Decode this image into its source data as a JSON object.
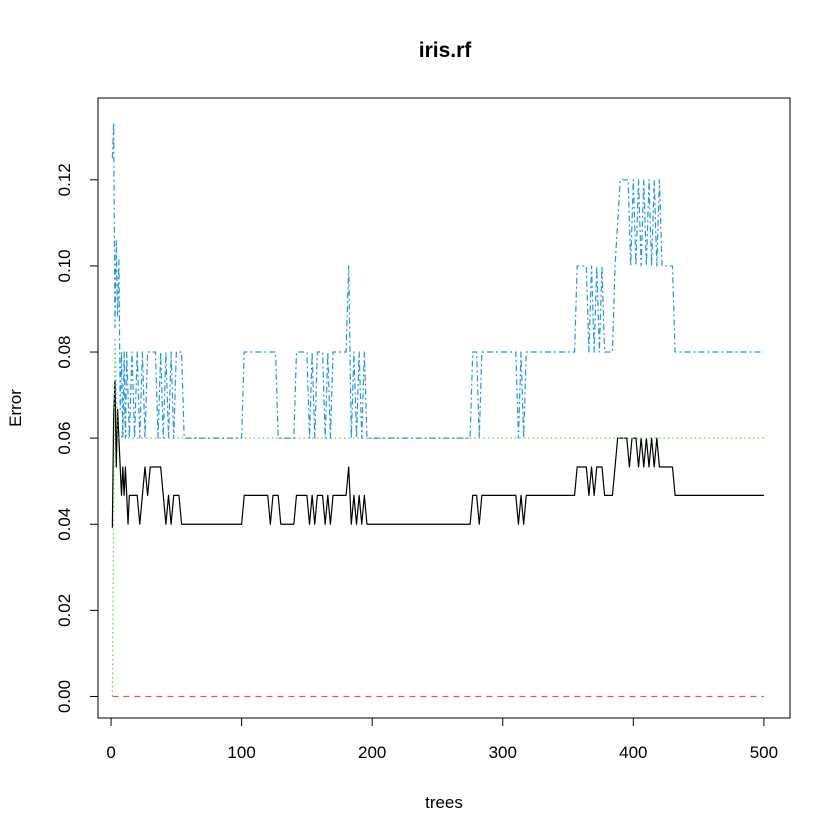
{
  "chart_data": {
    "type": "line",
    "title": "iris.rf",
    "xlabel": "trees",
    "ylabel": "Error",
    "xlim": [
      -10,
      520
    ],
    "ylim": [
      -0.005,
      0.139
    ],
    "x_ticks": [
      0,
      100,
      200,
      300,
      400,
      500
    ],
    "x_tick_labels": [
      "0",
      "100",
      "200",
      "300",
      "400",
      "500"
    ],
    "y_ticks": [
      0.0,
      0.02,
      0.04,
      0.06,
      0.08,
      0.1,
      0.12
    ],
    "y_tick_labels": [
      "0.00",
      "0.02",
      "0.04",
      "0.06",
      "0.08",
      "0.10",
      "0.12"
    ],
    "grid": false,
    "legend": "none",
    "series": [
      {
        "color": "#000000",
        "dash": "solid",
        "points": [
          [
            1,
            0.0392
          ],
          [
            2,
            0.0654
          ],
          [
            3,
            0.0733
          ],
          [
            4,
            0.0533
          ],
          [
            5,
            0.0667
          ],
          [
            6,
            0.06
          ],
          [
            7,
            0.0533
          ],
          [
            8,
            0.0467
          ],
          [
            9,
            0.0533
          ],
          [
            10,
            0.0467
          ],
          [
            11,
            0.0533
          ],
          [
            12,
            0.0467
          ],
          [
            13,
            0.04
          ],
          [
            14,
            0.0467
          ],
          [
            20,
            0.0467
          ],
          [
            22,
            0.04
          ],
          [
            24,
            0.0467
          ],
          [
            26,
            0.0533
          ],
          [
            28,
            0.0467
          ],
          [
            30,
            0.0533
          ],
          [
            38,
            0.0533
          ],
          [
            40,
            0.0467
          ],
          [
            42,
            0.04
          ],
          [
            44,
            0.0467
          ],
          [
            46,
            0.04
          ],
          [
            48,
            0.0467
          ],
          [
            52,
            0.0467
          ],
          [
            54,
            0.04
          ],
          [
            100,
            0.04
          ],
          [
            102,
            0.0467
          ],
          [
            120,
            0.0467
          ],
          [
            122,
            0.04
          ],
          [
            124,
            0.0467
          ],
          [
            128,
            0.0467
          ],
          [
            130,
            0.04
          ],
          [
            140,
            0.04
          ],
          [
            142,
            0.0467
          ],
          [
            150,
            0.0467
          ],
          [
            152,
            0.04
          ],
          [
            154,
            0.0467
          ],
          [
            156,
            0.04
          ],
          [
            158,
            0.0467
          ],
          [
            162,
            0.0467
          ],
          [
            164,
            0.04
          ],
          [
            166,
            0.0467
          ],
          [
            168,
            0.04
          ],
          [
            170,
            0.0467
          ],
          [
            180,
            0.0467
          ],
          [
            182,
            0.0533
          ],
          [
            184,
            0.04
          ],
          [
            186,
            0.0467
          ],
          [
            188,
            0.04
          ],
          [
            190,
            0.0467
          ],
          [
            192,
            0.04
          ],
          [
            194,
            0.0467
          ],
          [
            196,
            0.04
          ],
          [
            275,
            0.04
          ],
          [
            277,
            0.0467
          ],
          [
            280,
            0.0467
          ],
          [
            282,
            0.04
          ],
          [
            284,
            0.0467
          ],
          [
            310,
            0.0467
          ],
          [
            312,
            0.04
          ],
          [
            314,
            0.0467
          ],
          [
            316,
            0.04
          ],
          [
            318,
            0.0467
          ],
          [
            355,
            0.0467
          ],
          [
            357,
            0.0533
          ],
          [
            364,
            0.0533
          ],
          [
            366,
            0.0467
          ],
          [
            368,
            0.0533
          ],
          [
            370,
            0.0467
          ],
          [
            372,
            0.0533
          ],
          [
            376,
            0.0533
          ],
          [
            378,
            0.0467
          ],
          [
            384,
            0.0467
          ],
          [
            386,
            0.0533
          ],
          [
            388,
            0.06
          ],
          [
            395,
            0.06
          ],
          [
            397,
            0.0533
          ],
          [
            399,
            0.06
          ],
          [
            402,
            0.06
          ],
          [
            404,
            0.0533
          ],
          [
            406,
            0.06
          ],
          [
            408,
            0.0533
          ],
          [
            410,
            0.06
          ],
          [
            412,
            0.0533
          ],
          [
            414,
            0.06
          ],
          [
            416,
            0.0533
          ],
          [
            418,
            0.06
          ],
          [
            420,
            0.0533
          ],
          [
            430,
            0.0533
          ],
          [
            432,
            0.0467
          ],
          [
            500,
            0.0467
          ]
        ]
      },
      {
        "color": "#DF536B",
        "dash": "6,5",
        "points": [
          [
            1,
            0.0
          ],
          [
            500,
            0.0
          ]
        ]
      },
      {
        "color": "#61D04F",
        "dash": "1.5,3",
        "points": [
          [
            1,
            0.0
          ],
          [
            3,
            0.0833
          ],
          [
            5,
            0.06
          ],
          [
            8,
            0.06
          ],
          [
            10,
            0.0667
          ],
          [
            12,
            0.06
          ],
          [
            500,
            0.06
          ]
        ]
      },
      {
        "color": "#2297E6",
        "dash": "6,3,2,3",
        "points": [
          [
            1,
            0.125
          ],
          [
            2,
            0.1333
          ],
          [
            3,
            0.0857
          ],
          [
            4,
            0.1061
          ],
          [
            5,
            0.0882
          ],
          [
            6,
            0.1014
          ],
          [
            7,
            0.0667
          ],
          [
            8,
            0.08
          ],
          [
            9,
            0.06
          ],
          [
            10,
            0.08
          ],
          [
            11,
            0.06
          ],
          [
            12,
            0.08
          ],
          [
            14,
            0.06
          ],
          [
            16,
            0.08
          ],
          [
            18,
            0.06
          ],
          [
            20,
            0.08
          ],
          [
            22,
            0.06
          ],
          [
            24,
            0.08
          ],
          [
            26,
            0.06
          ],
          [
            28,
            0.08
          ],
          [
            34,
            0.08
          ],
          [
            36,
            0.06
          ],
          [
            38,
            0.08
          ],
          [
            40,
            0.06
          ],
          [
            42,
            0.08
          ],
          [
            44,
            0.06
          ],
          [
            46,
            0.08
          ],
          [
            48,
            0.06
          ],
          [
            50,
            0.08
          ],
          [
            54,
            0.08
          ],
          [
            56,
            0.06
          ],
          [
            100,
            0.06
          ],
          [
            102,
            0.08
          ],
          [
            126,
            0.08
          ],
          [
            128,
            0.06
          ],
          [
            140,
            0.06
          ],
          [
            142,
            0.08
          ],
          [
            150,
            0.08
          ],
          [
            152,
            0.06
          ],
          [
            154,
            0.08
          ],
          [
            156,
            0.06
          ],
          [
            158,
            0.08
          ],
          [
            162,
            0.08
          ],
          [
            164,
            0.06
          ],
          [
            166,
            0.08
          ],
          [
            168,
            0.06
          ],
          [
            170,
            0.08
          ],
          [
            180,
            0.08
          ],
          [
            182,
            0.1
          ],
          [
            184,
            0.06
          ],
          [
            186,
            0.08
          ],
          [
            188,
            0.06
          ],
          [
            190,
            0.08
          ],
          [
            192,
            0.06
          ],
          [
            194,
            0.08
          ],
          [
            196,
            0.06
          ],
          [
            275,
            0.06
          ],
          [
            277,
            0.08
          ],
          [
            280,
            0.08
          ],
          [
            282,
            0.06
          ],
          [
            284,
            0.08
          ],
          [
            310,
            0.08
          ],
          [
            312,
            0.06
          ],
          [
            314,
            0.08
          ],
          [
            316,
            0.06
          ],
          [
            318,
            0.08
          ],
          [
            355,
            0.08
          ],
          [
            357,
            0.1
          ],
          [
            364,
            0.1
          ],
          [
            366,
            0.08
          ],
          [
            368,
            0.1
          ],
          [
            370,
            0.08
          ],
          [
            372,
            0.1
          ],
          [
            374,
            0.08
          ],
          [
            376,
            0.1
          ],
          [
            378,
            0.08
          ],
          [
            384,
            0.08
          ],
          [
            386,
            0.1
          ],
          [
            390,
            0.12
          ],
          [
            396,
            0.12
          ],
          [
            398,
            0.1
          ],
          [
            400,
            0.12
          ],
          [
            402,
            0.1
          ],
          [
            404,
            0.12
          ],
          [
            406,
            0.1
          ],
          [
            408,
            0.12
          ],
          [
            410,
            0.1
          ],
          [
            412,
            0.12
          ],
          [
            414,
            0.1
          ],
          [
            416,
            0.12
          ],
          [
            418,
            0.1
          ],
          [
            420,
            0.12
          ],
          [
            422,
            0.1
          ],
          [
            430,
            0.1
          ],
          [
            432,
            0.08
          ],
          [
            500,
            0.08
          ]
        ]
      }
    ]
  }
}
